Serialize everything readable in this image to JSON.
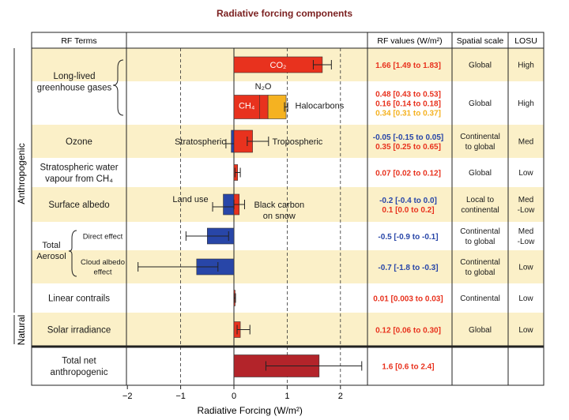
{
  "title": "Radiative forcing components",
  "headers": {
    "rf_terms": "RF Terms",
    "rf_values": "RF values (W/m²)",
    "spatial_scale": "Spatial scale",
    "losu": "LOSU"
  },
  "group_labels": {
    "anthropogenic": "Anthropogenic",
    "natural": "Natural"
  },
  "colors": {
    "positive": "#e8321e",
    "negative": "#2846a8",
    "halocarbon": "#f5b221",
    "total": "#b3242a",
    "band": "#fbf0c8",
    "title": "#7a1f1f"
  },
  "rows": [
    {
      "term": [
        "Long-lived",
        "greenhouse gases"
      ],
      "band": true,
      "scale": [
        "Global"
      ],
      "losu": [
        "High"
      ],
      "values": [
        {
          "text": "1.66 [1.49 to 1.83]",
          "color": "positive"
        }
      ]
    },
    {
      "term": [],
      "band": false,
      "scale": [
        "Global"
      ],
      "losu": [
        "High"
      ],
      "values": [
        {
          "text": "0.48 [0.43 to 0.53]",
          "color": "positive"
        },
        {
          "text": "0.16 [0.14 to 0.18]",
          "color": "positive"
        },
        {
          "text": "0.34 [0.31 to 0.37]",
          "color": "halocarbon"
        }
      ]
    },
    {
      "term": [
        "Ozone"
      ],
      "band": true,
      "scale": [
        "Continental",
        "to global"
      ],
      "losu": [
        "Med"
      ],
      "values": [
        {
          "text": "-0.05 [-0.15 to 0.05]",
          "color": "negative"
        },
        {
          "text": "0.35 [0.25 to 0.65]",
          "color": "positive"
        }
      ]
    },
    {
      "term": [
        "Stratospheric water",
        "vapour from CH₄"
      ],
      "band": false,
      "scale": [
        "Global"
      ],
      "losu": [
        "Low"
      ],
      "values": [
        {
          "text": "0.07 [0.02 to 0.12]",
          "color": "positive"
        }
      ]
    },
    {
      "term": [
        "Surface albedo"
      ],
      "band": true,
      "scale": [
        "Local to",
        "continental"
      ],
      "losu": [
        "Med",
        "-Low"
      ],
      "values": [
        {
          "text": "-0.2 [-0.4 to 0.0]",
          "color": "negative"
        },
        {
          "text": "0.1 [0.0 to 0.2]",
          "color": "positive"
        }
      ]
    },
    {
      "term": [],
      "band": false,
      "scale": [
        "Continental",
        "to global"
      ],
      "losu": [
        "Med",
        "-Low"
      ],
      "values": [
        {
          "text": "-0.5 [-0.9 to -0.1]",
          "color": "negative"
        }
      ]
    },
    {
      "term": [],
      "band": true,
      "scale": [
        "Continental",
        "to global"
      ],
      "losu": [
        "Low"
      ],
      "values": [
        {
          "text": "-0.7 [-1.8 to -0.3]",
          "color": "negative"
        }
      ]
    },
    {
      "term": [
        "Linear contrails"
      ],
      "band": false,
      "scale": [
        "Continental"
      ],
      "losu": [
        "Low"
      ],
      "values": [
        {
          "text": "0.01 [0.003 to 0.03]",
          "color": "positive"
        }
      ]
    },
    {
      "term": [
        "Solar irradiance"
      ],
      "band": true,
      "scale": [
        "Global"
      ],
      "losu": [
        "Low"
      ],
      "values": [
        {
          "text": "0.12 [0.06 to 0.30]",
          "color": "positive"
        }
      ]
    },
    {
      "term": [
        "Total net",
        "anthropogenic"
      ],
      "band": false,
      "scale": [],
      "losu": [],
      "values": [
        {
          "text": "1.6 [0.6 to 2.4]",
          "color": "positive"
        }
      ]
    }
  ],
  "aerosol_labels": {
    "total": [
      "Total",
      "Aerosol"
    ],
    "direct": [
      "Direct effect"
    ],
    "cloud": [
      "Cloud albedo",
      "effect"
    ]
  },
  "annotations": [
    {
      "text": "CO₂",
      "color": "#ffffff",
      "x": 0.83,
      "row": 0,
      "anchor": "middle"
    },
    {
      "text": "N₂O",
      "color": "#1a1a1a",
      "x": 0.55,
      "row": 1,
      "anchor": "middle",
      "above": true
    },
    {
      "text": "CH₄",
      "color": "#ffffff",
      "x": 0.24,
      "row": 1,
      "anchor": "middle"
    },
    {
      "text": "Halocarbons",
      "color": "#1a1a1a",
      "x": 1.15,
      "row": 1,
      "anchor": "start"
    },
    {
      "text": "Stratospheric",
      "color": "#1a1a1a",
      "x": -0.15,
      "row": 2,
      "anchor": "end"
    },
    {
      "text": "Tropospheric",
      "color": "#1a1a1a",
      "x": 0.72,
      "row": 2,
      "anchor": "start"
    },
    {
      "text": "Land use",
      "color": "#1a1a1a",
      "x": -0.48,
      "row": 4,
      "anchor": "end",
      "dy": -7
    },
    {
      "text": "Black carbon",
      "color": "#1a1a1a",
      "x": 0.85,
      "row": 4,
      "anchor": "middle",
      "dy": 0
    },
    {
      "text": "on snow",
      "color": "#1a1a1a",
      "x": 0.85,
      "row": 4,
      "anchor": "middle",
      "dy": 14
    }
  ],
  "chart_data": {
    "type": "bar",
    "orientation": "horizontal",
    "title": "Radiative forcing components",
    "xlabel": "Radiative Forcing (W/m²)",
    "xlim": [
      -2,
      2.5
    ],
    "xticks": [
      -2,
      -1,
      0,
      1,
      2
    ],
    "grid": "dashed vertical lines at -1, 1, 2",
    "bars": [
      {
        "label": "CO₂",
        "row": 0,
        "start": 0,
        "value": 1.66,
        "low": 1.49,
        "high": 1.83,
        "color": "positive"
      },
      {
        "label": "CH₄",
        "row": 1,
        "start": 0,
        "value": 0.48,
        "color": "positive"
      },
      {
        "label": "N₂O",
        "row": 1,
        "start": 0.48,
        "value": 0.16,
        "color": "positive"
      },
      {
        "label": "Halocarbons",
        "row": 1,
        "start": 0.64,
        "value": 0.34,
        "low": 0.31,
        "high": 0.37,
        "err_base": 0.64,
        "color": "halocarbon"
      },
      {
        "label": "Stratospheric ozone",
        "row": 2,
        "start": 0,
        "value": -0.05,
        "low": -0.15,
        "high": 0.05,
        "color": "negative"
      },
      {
        "label": "Tropospheric ozone",
        "row": 2,
        "start": 0,
        "value": 0.35,
        "low": 0.25,
        "high": 0.65,
        "color": "positive"
      },
      {
        "label": "Stratospheric water vapour from CH₄",
        "row": 3,
        "start": 0,
        "value": 0.07,
        "low": 0.02,
        "high": 0.12,
        "color": "positive"
      },
      {
        "label": "Land use",
        "row": 4,
        "start": 0,
        "value": -0.2,
        "low": -0.4,
        "high": 0.0,
        "color": "negative"
      },
      {
        "label": "Black carbon on snow",
        "row": 4,
        "start": 0,
        "value": 0.1,
        "low": 0.0,
        "high": 0.2,
        "color": "positive"
      },
      {
        "label": "Direct effect",
        "row": 5,
        "start": 0,
        "value": -0.5,
        "low": -0.9,
        "high": -0.1,
        "color": "negative"
      },
      {
        "label": "Cloud albedo effect",
        "row": 6,
        "start": 0,
        "value": -0.7,
        "low": -1.8,
        "high": -0.3,
        "color": "negative"
      },
      {
        "label": "Linear contrails",
        "row": 7,
        "start": 0,
        "value": 0.01,
        "low": 0.003,
        "high": 0.03,
        "color": "positive"
      },
      {
        "label": "Solar irradiance",
        "row": 8,
        "start": 0,
        "value": 0.12,
        "low": 0.06,
        "high": 0.3,
        "color": "positive"
      },
      {
        "label": "Total net anthropogenic",
        "row": 9,
        "start": 0,
        "value": 1.6,
        "low": 0.6,
        "high": 2.4,
        "color": "total"
      }
    ]
  }
}
